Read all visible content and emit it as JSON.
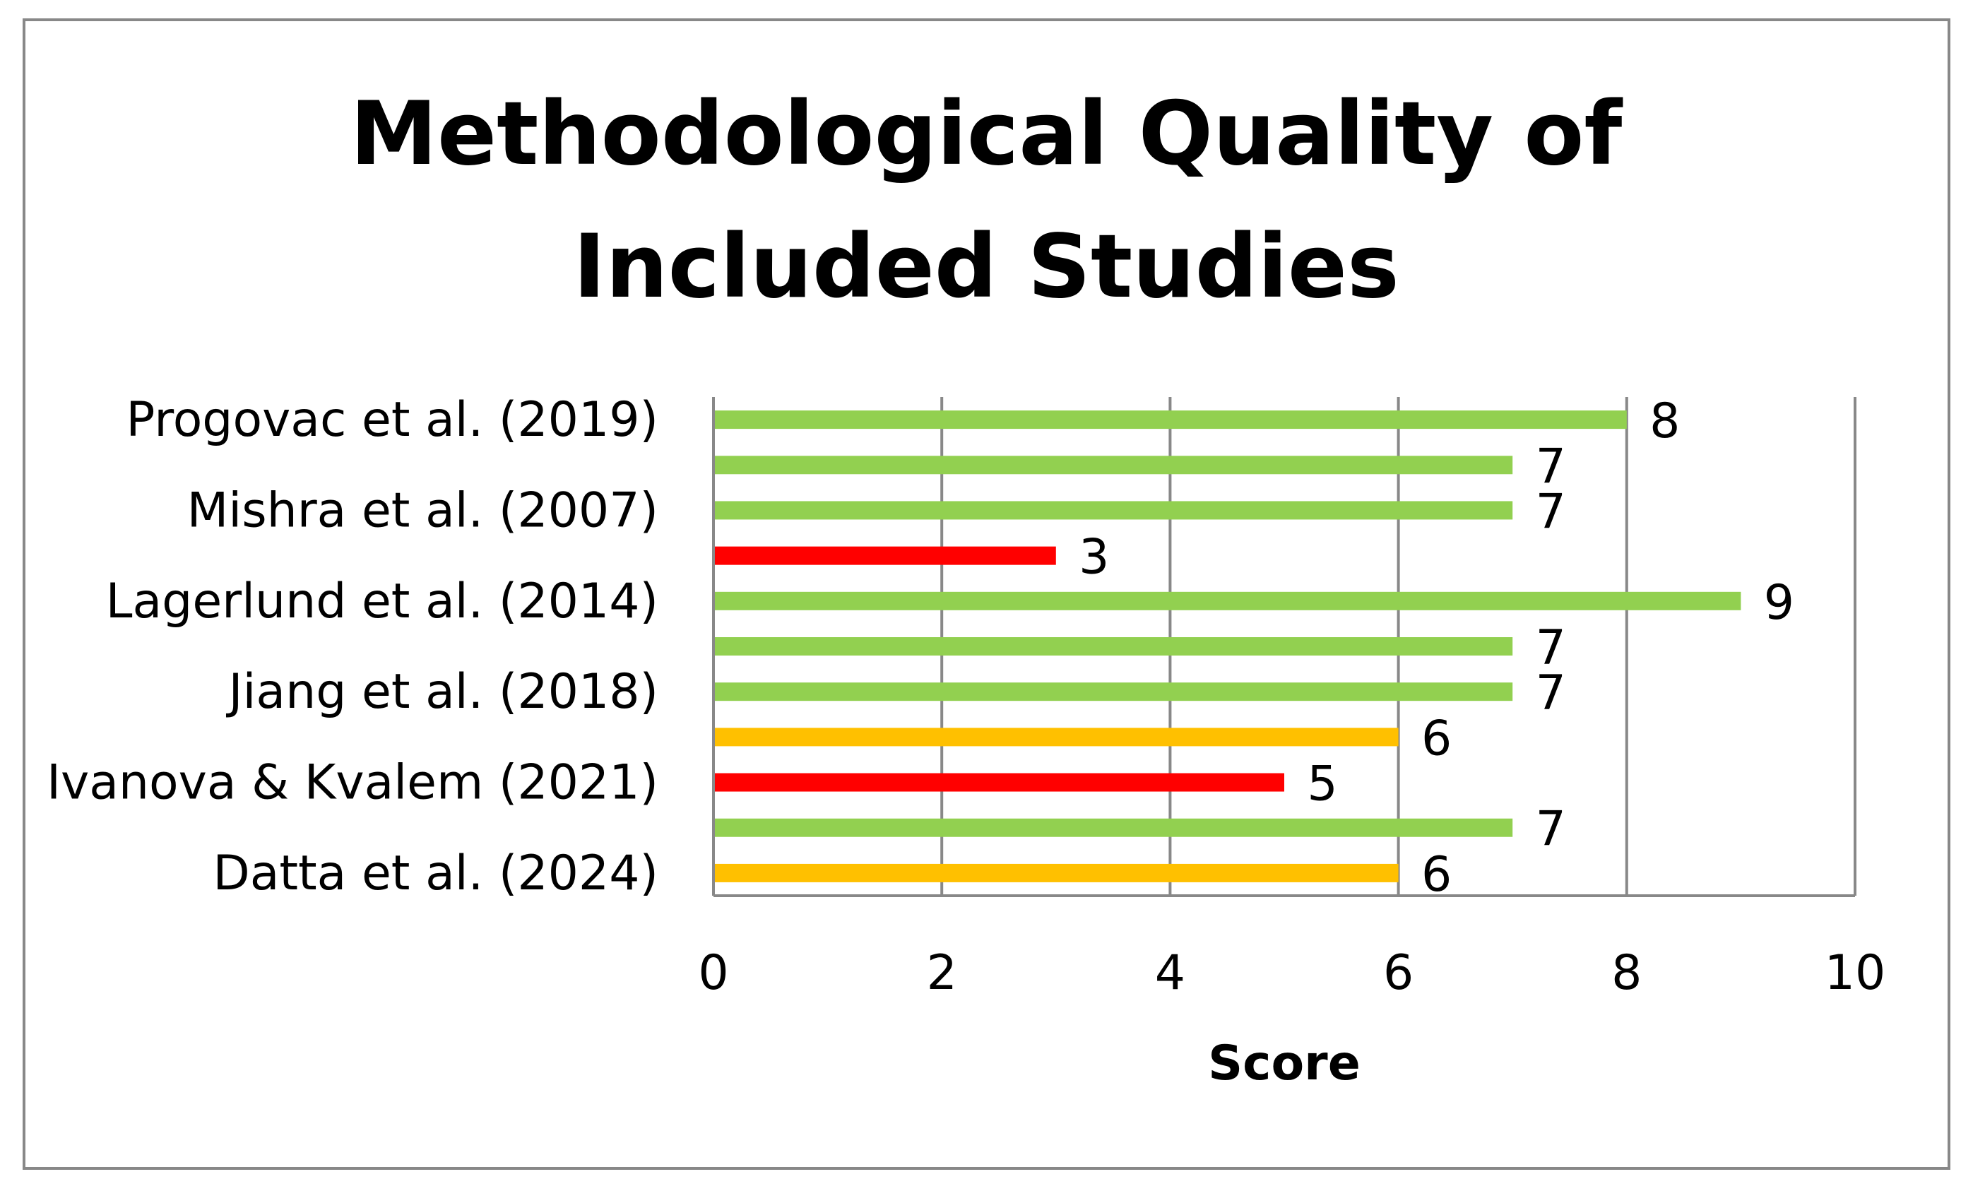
{
  "chart_data": {
    "type": "bar",
    "orientation": "horizontal",
    "title_lines": [
      "Methodological Quality of",
      "Included Studies"
    ],
    "xlabel": "Score",
    "ylabel": "",
    "xlim": [
      0,
      10
    ],
    "xticks": [
      "0",
      "2",
      "4",
      "6",
      "8",
      "10"
    ],
    "grid": "vertical",
    "legend": "none",
    "categories": [
      "Progovac et al. (2019)",
      "",
      "Mishra et al. (2007)",
      "",
      "Lagerlund et al. (2014)",
      "",
      "Jiang et al. (2018)",
      "",
      "Ivanova & Kvalem (2021)",
      "",
      "Datta et al. (2024)"
    ],
    "values": [
      8,
      7,
      7,
      3,
      9,
      7,
      7,
      6,
      5,
      7,
      6
    ],
    "data_labels": [
      "8",
      "7",
      "7",
      "3",
      "9",
      "7",
      "7",
      "6",
      "5",
      "7",
      "6"
    ],
    "bar_colors": [
      "#92d050",
      "#92d050",
      "#92d050",
      "#ff0000",
      "#92d050",
      "#92d050",
      "#92d050",
      "#ffc000",
      "#ff0000",
      "#92d050",
      "#ffc000"
    ]
  }
}
